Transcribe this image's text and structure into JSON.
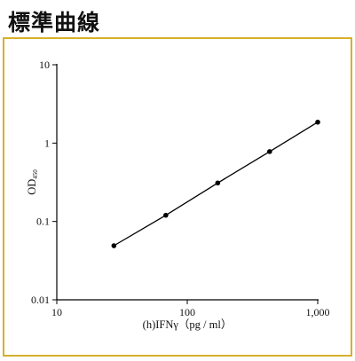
{
  "page": {
    "title": "標準曲線"
  },
  "colors": {
    "panel_border": "#d6b02a",
    "line": "#000000",
    "marker": "#000000"
  },
  "chart_data": {
    "type": "line",
    "title": "",
    "xlabel": "(h)IFNγ（pg / ml）",
    "ylabel": {
      "main": "OD",
      "subscript": "450"
    },
    "xscale": "log",
    "yscale": "log",
    "xlim": [
      10,
      1000
    ],
    "ylim": [
      0.01,
      10
    ],
    "xticks": [
      10,
      100,
      1000
    ],
    "xtick_labels": [
      "10",
      "100",
      "1,000"
    ],
    "yticks": [
      0.01,
      0.1,
      1,
      10
    ],
    "ytick_labels": [
      "0.01",
      "0.1",
      "1",
      "10"
    ],
    "grid": false,
    "series": [
      {
        "x": [
          27.4,
          68.5,
          171.2,
          428,
          1000
        ],
        "y": [
          0.049,
          0.12,
          0.31,
          0.78,
          1.85
        ]
      }
    ]
  }
}
